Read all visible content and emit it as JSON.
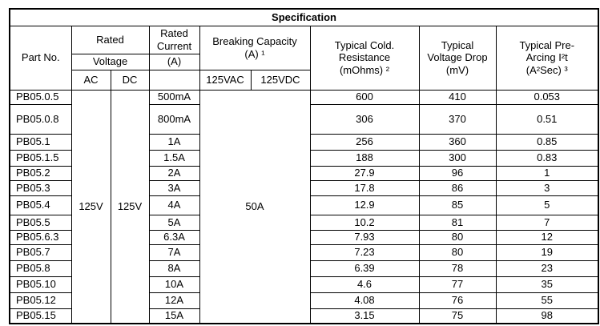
{
  "table": {
    "title": "Specification",
    "headers": {
      "part_no": "Part No.",
      "rated": "Rated",
      "voltage": "Voltage",
      "ac": "AC",
      "dc": "DC",
      "rated_current": "Rated\nCurrent",
      "current_unit": "(A)",
      "breaking_capacity": "Breaking Capacity\n(A) ¹",
      "vac": "125VAC",
      "vdc": "125VDC",
      "cold_resistance": "Typical Cold.\nResistance\n(mOhms) ²",
      "voltage_drop": "Typical\nVoltage Drop\n(mV)",
      "pre_arcing": "Typical Pre-\nArcing I²t\n(A²Sec) ³"
    },
    "merged": {
      "ac_voltage": "125V",
      "dc_voltage": "125V",
      "breaking_capacity": "50A"
    },
    "rows": [
      {
        "part": "PB05.0.5",
        "current": "500mA",
        "resistance": "600",
        "drop": "410",
        "prearcing": "0.053"
      },
      {
        "part": "PB05.0.8",
        "current": "800mA",
        "resistance": "306",
        "drop": "370",
        "prearcing": "0.51"
      },
      {
        "part": "PB05.1",
        "current": "1A",
        "resistance": "256",
        "drop": "360",
        "prearcing": "0.85"
      },
      {
        "part": "PB05.1.5",
        "current": "1.5A",
        "resistance": "188",
        "drop": "300",
        "prearcing": "0.83"
      },
      {
        "part": "PB05.2",
        "current": "2A",
        "resistance": "27.9",
        "drop": "96",
        "prearcing": "1"
      },
      {
        "part": "PB05.3",
        "current": "3A",
        "resistance": "17.8",
        "drop": "86",
        "prearcing": "3"
      },
      {
        "part": "PB05.4",
        "current": "4A",
        "resistance": "12.9",
        "drop": "85",
        "prearcing": "5"
      },
      {
        "part": "PB05.5",
        "current": "5A",
        "resistance": "10.2",
        "drop": "81",
        "prearcing": "7"
      },
      {
        "part": "PB05.6.3",
        "current": "6.3A",
        "resistance": "7.93",
        "drop": "80",
        "prearcing": "12"
      },
      {
        "part": "PB05.7",
        "current": "7A",
        "resistance": "7.23",
        "drop": "80",
        "prearcing": "19"
      },
      {
        "part": "PB05.8",
        "current": "8A",
        "resistance": "6.39",
        "drop": "78",
        "prearcing": "23"
      },
      {
        "part": "PB05.10",
        "current": "10A",
        "resistance": "4.6",
        "drop": "77",
        "prearcing": "35"
      },
      {
        "part": "PB05.12",
        "current": "12A",
        "resistance": "4.08",
        "drop": "76",
        "prearcing": "55"
      },
      {
        "part": "PB05.15",
        "current": "15A",
        "resistance": "3.15",
        "drop": "75",
        "prearcing": "98"
      }
    ]
  }
}
